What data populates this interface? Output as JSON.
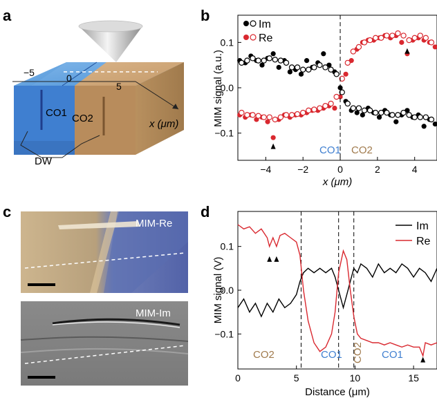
{
  "panels": {
    "a": {
      "label": "a",
      "axis_ticks": [
        "−5",
        "0",
        "5"
      ],
      "axis_label": "x (μm)",
      "domains": [
        "CO1",
        "CO2"
      ],
      "domain_wall_label": "DW"
    },
    "c": {
      "label": "c",
      "top_image_label": "MIM-Re",
      "bottom_image_label": "MIM-Im"
    }
  },
  "colors": {
    "co1": "#4a86c8",
    "co2": "#a88458",
    "im": "#000000",
    "re": "#d9282f"
  },
  "chart_data": [
    {
      "panel": "b",
      "type": "scatter",
      "xlabel": "x (μm)",
      "ylabel": "MIM signal (a.u.)",
      "xlim": [
        -5.5,
        5.2
      ],
      "ylim": [
        -0.16,
        0.16
      ],
      "xticks": [
        -4,
        -2,
        0,
        2,
        4
      ],
      "yticks": [
        -0.1,
        0.0,
        0.1
      ],
      "xtick_labels": [
        "−4",
        "−2",
        "0",
        "2",
        "4"
      ],
      "ytick_labels": [
        "−0.1",
        "0.0",
        "0.1"
      ],
      "grid": false,
      "legend_position": "top-left",
      "annotations": [
        "CO1",
        "CO2"
      ],
      "markers_at_x": [
        -3.6,
        3.6
      ],
      "series": [
        {
          "name": "Im",
          "style": "filled",
          "x": [
            -5.4,
            -5.1,
            -4.8,
            -4.5,
            -4.2,
            -3.9,
            -3.6,
            -3.3,
            -3.0,
            -2.7,
            -2.4,
            -2.1,
            -1.8,
            -1.5,
            -1.2,
            -0.9,
            -0.6,
            -0.3,
            0.0,
            0.3,
            0.6,
            0.9,
            1.2,
            1.5,
            1.8,
            2.1,
            2.4,
            2.7,
            3.0,
            3.3,
            3.6,
            3.9,
            4.2,
            4.5,
            4.8,
            5.1
          ],
          "y": [
            0.06,
            0.055,
            0.07,
            0.06,
            0.05,
            0.065,
            0.075,
            0.045,
            0.06,
            0.035,
            0.04,
            0.03,
            0.06,
            0.045,
            0.055,
            0.075,
            0.05,
            0.035,
            0.0,
            -0.03,
            -0.05,
            -0.055,
            -0.06,
            -0.045,
            -0.055,
            -0.065,
            -0.05,
            -0.06,
            -0.075,
            -0.06,
            -0.05,
            -0.065,
            -0.06,
            -0.085,
            -0.07,
            -0.08
          ]
        },
        {
          "name": "Im",
          "style": "open",
          "x": [
            -5.3,
            -5.0,
            -4.7,
            -4.4,
            -4.1,
            -3.8,
            -3.5,
            -3.2,
            -2.9,
            -2.6,
            -2.3,
            -2.0,
            -1.7,
            -1.4,
            -1.1,
            -0.8,
            -0.5,
            -0.2,
            0.1,
            0.4,
            0.7,
            1.0,
            1.3,
            1.6,
            1.9,
            2.2,
            2.5,
            2.8,
            3.1,
            3.4,
            3.7,
            4.0,
            4.3,
            4.6,
            4.9
          ],
          "y": [
            0.055,
            0.06,
            0.065,
            0.06,
            0.06,
            0.065,
            0.062,
            0.06,
            0.055,
            0.045,
            0.045,
            0.04,
            0.04,
            0.045,
            0.05,
            0.045,
            0.04,
            0.03,
            -0.01,
            -0.035,
            -0.045,
            -0.045,
            -0.05,
            -0.05,
            -0.055,
            -0.055,
            -0.055,
            -0.06,
            -0.06,
            -0.055,
            -0.06,
            -0.065,
            -0.065,
            -0.065,
            -0.07
          ]
        },
        {
          "name": "Re",
          "style": "filled",
          "x": [
            -5.4,
            -5.1,
            -4.8,
            -4.5,
            -4.2,
            -3.9,
            -3.6,
            -3.3,
            -3.0,
            -2.7,
            -2.4,
            -2.1,
            -1.8,
            -1.5,
            -1.2,
            -0.9,
            -0.6,
            -0.3,
            0.0,
            0.3,
            0.6,
            0.9,
            1.2,
            1.5,
            1.8,
            2.1,
            2.4,
            2.7,
            3.0,
            3.3,
            3.6,
            3.9,
            4.2,
            4.5,
            4.8,
            5.1
          ],
          "y": [
            -0.06,
            -0.065,
            -0.06,
            -0.07,
            -0.065,
            -0.075,
            -0.11,
            -0.07,
            -0.06,
            -0.065,
            -0.06,
            -0.06,
            -0.055,
            -0.05,
            -0.05,
            -0.045,
            -0.04,
            -0.045,
            -0.02,
            0.03,
            0.06,
            0.085,
            0.1,
            0.105,
            0.105,
            0.11,
            0.115,
            0.11,
            0.115,
            0.1,
            0.075,
            0.105,
            0.11,
            0.105,
            0.1,
            0.09
          ]
        },
        {
          "name": "Re",
          "style": "open",
          "x": [
            -5.3,
            -5.0,
            -4.7,
            -4.4,
            -4.1,
            -3.8,
            -3.5,
            -3.2,
            -2.9,
            -2.6,
            -2.3,
            -2.0,
            -1.7,
            -1.4,
            -1.1,
            -0.8,
            -0.5,
            -0.2,
            0.1,
            0.4,
            0.7,
            1.0,
            1.3,
            1.6,
            1.9,
            2.2,
            2.5,
            2.8,
            3.1,
            3.4,
            3.7,
            4.0,
            4.3,
            4.6,
            4.9
          ],
          "y": [
            -0.055,
            -0.06,
            -0.06,
            -0.062,
            -0.065,
            -0.065,
            -0.07,
            -0.065,
            -0.06,
            -0.06,
            -0.058,
            -0.055,
            -0.05,
            -0.048,
            -0.045,
            -0.04,
            -0.035,
            -0.02,
            0.02,
            0.055,
            0.08,
            0.09,
            0.1,
            0.105,
            0.11,
            0.11,
            0.115,
            0.115,
            0.12,
            0.115,
            0.105,
            0.11,
            0.115,
            0.11,
            0.1
          ]
        }
      ]
    },
    {
      "panel": "d",
      "type": "line",
      "xlabel": "Distance (μm)",
      "ylabel": "MIM signal (V)",
      "xlim": [
        0,
        17
      ],
      "ylim": [
        -0.18,
        0.18
      ],
      "xticks": [
        0,
        5,
        10,
        15
      ],
      "yticks": [
        -0.1,
        0.0,
        0.1
      ],
      "xtick_labels": [
        "0",
        "5",
        "10",
        "15"
      ],
      "ytick_labels": [
        "−0.1",
        "0.0",
        "0.1"
      ],
      "grid": false,
      "legend_position": "top-right",
      "domain_boundaries": [
        5.4,
        8.6,
        9.9
      ],
      "annotations": [
        "CO2",
        "CO1",
        "CO2",
        "CO1"
      ],
      "markers_at_x": [
        2.7,
        3.3,
        15.8
      ],
      "series": [
        {
          "name": "Im",
          "x": [
            0.0,
            0.5,
            1.0,
            1.5,
            2.0,
            2.5,
            3.0,
            3.5,
            4.0,
            4.5,
            5.0,
            5.3,
            5.6,
            6.0,
            6.5,
            7.0,
            7.5,
            8.0,
            8.3,
            8.6,
            9.0,
            9.3,
            9.6,
            9.9,
            10.2,
            10.5,
            11.0,
            11.5,
            12.0,
            12.5,
            13.0,
            13.5,
            14.0,
            14.5,
            15.0,
            15.5,
            16.0,
            16.5,
            17.0
          ],
          "y": [
            -0.04,
            -0.02,
            -0.05,
            -0.03,
            -0.06,
            -0.03,
            -0.05,
            -0.02,
            -0.04,
            -0.03,
            -0.01,
            0.02,
            0.04,
            0.05,
            0.04,
            0.05,
            0.04,
            0.05,
            0.03,
            0.0,
            -0.04,
            -0.01,
            0.02,
            0.05,
            0.04,
            0.06,
            0.05,
            0.03,
            0.06,
            0.04,
            0.05,
            0.04,
            0.06,
            0.05,
            0.03,
            0.05,
            0.04,
            0.02,
            0.05
          ]
        },
        {
          "name": "Re",
          "x": [
            0.0,
            0.5,
            1.0,
            1.5,
            2.0,
            2.5,
            2.7,
            3.0,
            3.3,
            3.6,
            4.0,
            4.5,
            5.0,
            5.3,
            5.6,
            6.0,
            6.5,
            7.0,
            7.5,
            8.0,
            8.3,
            8.6,
            9.0,
            9.3,
            9.6,
            9.9,
            10.2,
            10.5,
            11.0,
            11.5,
            12.0,
            12.5,
            13.0,
            13.5,
            14.0,
            14.5,
            15.0,
            15.5,
            15.8,
            16.0,
            16.5,
            17.0
          ],
          "y": [
            0.15,
            0.14,
            0.145,
            0.13,
            0.14,
            0.12,
            0.1,
            0.12,
            0.1,
            0.125,
            0.13,
            0.12,
            0.11,
            0.08,
            0.0,
            -0.07,
            -0.12,
            -0.14,
            -0.13,
            -0.1,
            -0.05,
            0.04,
            0.09,
            0.07,
            0.0,
            -0.06,
            -0.1,
            -0.11,
            -0.115,
            -0.12,
            -0.12,
            -0.125,
            -0.12,
            -0.125,
            -0.13,
            -0.125,
            -0.13,
            -0.13,
            -0.15,
            -0.12,
            -0.125,
            -0.12
          ]
        }
      ]
    }
  ]
}
